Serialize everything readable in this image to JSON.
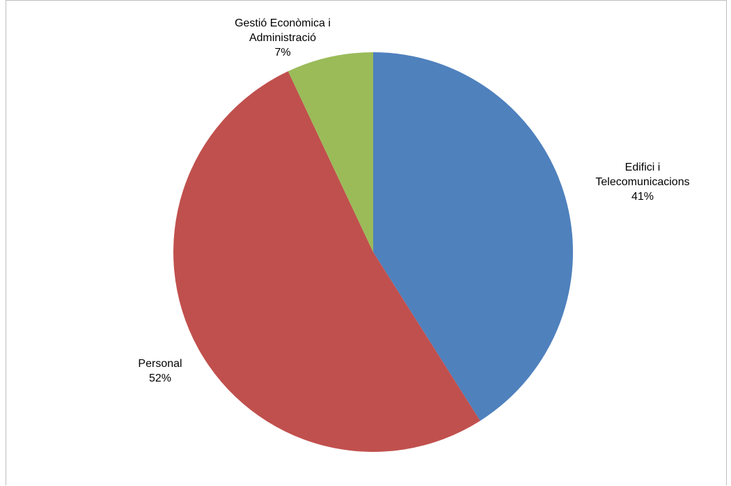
{
  "chart_data": {
    "type": "pie",
    "title": "",
    "slices": [
      {
        "label_lines": [
          "Edifici i",
          "Telecomunicacions"
        ],
        "pct_label": "41%",
        "value": 41,
        "color": "#4F81BD"
      },
      {
        "label_lines": [
          "Personal"
        ],
        "pct_label": "52%",
        "value": 52,
        "color": "#C0504D"
      },
      {
        "label_lines": [
          "Gestió Econòmica i",
          "Administració"
        ],
        "pct_label": "7%",
        "value": 7,
        "color": "#9BBB59"
      }
    ],
    "start_angle_deg": 0,
    "direction": "clockwise",
    "legend": "none"
  }
}
